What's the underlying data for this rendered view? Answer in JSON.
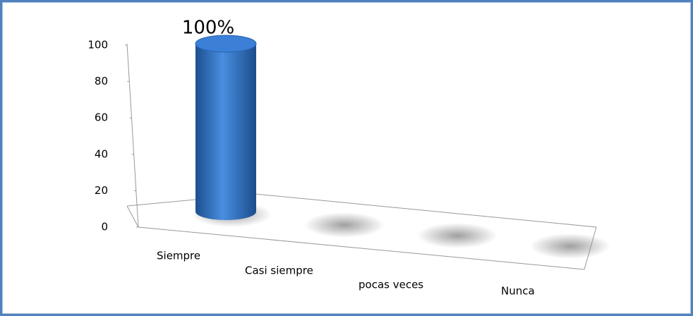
{
  "chart_data": {
    "type": "bar",
    "categories": [
      "Siempre",
      "Casi  siempre",
      "pocas  veces",
      "Nunca"
    ],
    "values": [
      100,
      0,
      0,
      0
    ],
    "value_labels": [
      "100%",
      null,
      null,
      null
    ],
    "color": "#2f6fc0",
    "ylim": [
      0,
      100
    ],
    "yticks": [
      0,
      20,
      40,
      60,
      80,
      100
    ],
    "grid": false
  }
}
